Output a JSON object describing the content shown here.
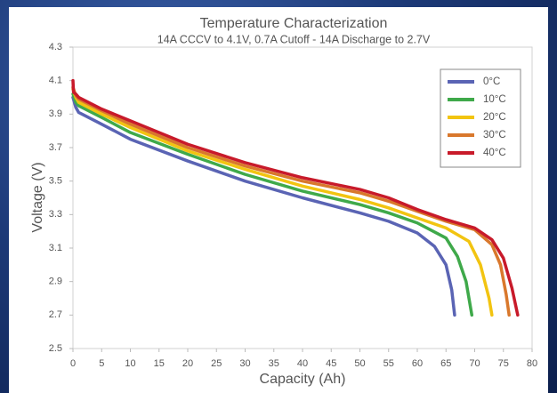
{
  "chart_data": {
    "type": "line",
    "title": "Temperature Characterization",
    "subtitle": "14A CCCV to 4.1V, 0.7A Cutoff - 14A Discharge to 2.7V",
    "x_label": "Capacity (Ah)",
    "y_label": "Voltage (V)",
    "xlim": [
      0,
      80
    ],
    "ylim": [
      2.5,
      4.3
    ],
    "xticks": [
      0,
      5,
      10,
      15,
      20,
      25,
      30,
      35,
      40,
      45,
      50,
      55,
      60,
      65,
      70,
      75,
      80
    ],
    "yticks": [
      2.5,
      2.7,
      2.9,
      3.1,
      3.3,
      3.5,
      3.7,
      3.9,
      4.1,
      4.3
    ],
    "grid": false,
    "legend": "top-right",
    "series": [
      {
        "name": "0°C",
        "color": "#5a64b4",
        "x": [
          0,
          0.5,
          1,
          5,
          10,
          20,
          30,
          40,
          50,
          55,
          60,
          63,
          65,
          66,
          66.5
        ],
        "values": [
          4.0,
          3.94,
          3.91,
          3.84,
          3.75,
          3.62,
          3.5,
          3.4,
          3.31,
          3.26,
          3.19,
          3.11,
          3.0,
          2.85,
          2.7
        ]
      },
      {
        "name": "10°C",
        "color": "#3fa94a",
        "x": [
          0,
          0.5,
          1,
          5,
          10,
          20,
          30,
          40,
          50,
          55,
          60,
          65,
          67,
          68.5,
          69.5
        ],
        "values": [
          4.02,
          3.97,
          3.95,
          3.88,
          3.79,
          3.66,
          3.54,
          3.44,
          3.36,
          3.31,
          3.25,
          3.16,
          3.05,
          2.9,
          2.7
        ]
      },
      {
        "name": "20°C",
        "color": "#f2c411",
        "x": [
          0,
          0.5,
          1,
          5,
          10,
          20,
          30,
          40,
          50,
          55,
          60,
          65,
          69,
          71,
          72.5,
          73
        ],
        "values": [
          4.05,
          4.0,
          3.97,
          3.9,
          3.82,
          3.68,
          3.57,
          3.47,
          3.39,
          3.34,
          3.28,
          3.22,
          3.14,
          3.0,
          2.8,
          2.7
        ]
      },
      {
        "name": "30°C",
        "color": "#d9782c",
        "x": [
          0,
          0.5,
          1,
          5,
          10,
          20,
          30,
          40,
          50,
          55,
          60,
          65,
          70,
          73,
          74.5,
          75.5,
          76
        ],
        "values": [
          4.06,
          4.01,
          3.99,
          3.92,
          3.84,
          3.7,
          3.59,
          3.5,
          3.43,
          3.38,
          3.32,
          3.26,
          3.21,
          3.12,
          3.0,
          2.82,
          2.7
        ]
      },
      {
        "name": "40°C",
        "color": "#c81a2a",
        "x": [
          0,
          0.1,
          0.5,
          1,
          5,
          10,
          20,
          30,
          40,
          50,
          55,
          60,
          65,
          70,
          73,
          75,
          76.5,
          77.5
        ],
        "values": [
          4.1,
          4.03,
          4.02,
          4.0,
          3.93,
          3.86,
          3.72,
          3.61,
          3.52,
          3.45,
          3.4,
          3.33,
          3.27,
          3.22,
          3.15,
          3.04,
          2.86,
          2.7
        ]
      }
    ]
  }
}
